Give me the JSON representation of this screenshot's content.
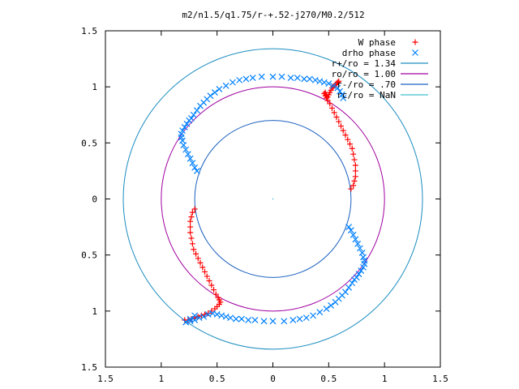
{
  "chart_data": {
    "type": "scatter",
    "title": "m2/n1.5/q1.75/r-+.52-j270/M0.2/512",
    "xlabel": "",
    "ylabel": "",
    "xlim": [
      -1.5,
      1.5
    ],
    "ylim": [
      -1.5,
      1.5
    ],
    "x_ticks": [
      "1.5",
      "1",
      "0.5",
      "0",
      "0.5",
      "1",
      "1.5"
    ],
    "y_ticks": [
      "1.5",
      "1",
      "0.5",
      "0",
      "0.5",
      "1",
      "1.5"
    ],
    "grid": false,
    "legend_position": "top-right",
    "colors": {
      "w_phase": "#ff0000",
      "drho_phase": "#0080ff",
      "r_plus": "#1a8cc0",
      "r0": "#a000a0",
      "r_minus": "#1a60c0",
      "rc": "#40c0d0"
    },
    "legend": [
      {
        "label": "W phase",
        "key": "w_phase",
        "marker": "plus"
      },
      {
        "label": "drho phase",
        "key": "drho_phase",
        "marker": "cross"
      },
      {
        "label": "r+/ro = 1.34",
        "key": "r_plus",
        "marker": "line"
      },
      {
        "label": "ro/ro = 1.00",
        "key": "r0",
        "marker": "line"
      },
      {
        "label": "r-/ro = .70",
        "key": "r_minus",
        "marker": "line"
      },
      {
        "label": "rc/ro = NaN",
        "key": "rc",
        "marker": "line"
      }
    ],
    "circles": [
      {
        "key": "r_plus",
        "radius": 1.34
      },
      {
        "key": "r0",
        "radius": 1.0
      },
      {
        "key": "r_minus",
        "radius": 0.7
      }
    ],
    "series": [
      {
        "name": "W phase",
        "key": "w_phase",
        "marker": "plus",
        "points": [
          [
            0.7,
            0.09
          ],
          [
            0.72,
            0.12
          ],
          [
            0.73,
            0.16
          ],
          [
            0.74,
            0.2
          ],
          [
            0.74,
            0.25
          ],
          [
            0.74,
            0.3
          ],
          [
            0.73,
            0.35
          ],
          [
            0.72,
            0.4
          ],
          [
            0.71,
            0.45
          ],
          [
            0.69,
            0.49
          ],
          [
            0.67,
            0.53
          ],
          [
            0.65,
            0.57
          ],
          [
            0.63,
            0.61
          ],
          [
            0.61,
            0.65
          ],
          [
            0.59,
            0.69
          ],
          [
            0.57,
            0.73
          ],
          [
            0.55,
            0.77
          ],
          [
            0.53,
            0.81
          ],
          [
            0.51,
            0.85
          ],
          [
            0.49,
            0.88
          ],
          [
            0.48,
            0.9
          ],
          [
            0.47,
            0.92
          ],
          [
            0.46,
            0.94
          ],
          [
            0.47,
            0.95
          ],
          [
            0.48,
            0.93
          ],
          [
            0.49,
            0.91
          ],
          [
            0.5,
            0.93
          ],
          [
            0.51,
            0.95
          ],
          [
            0.52,
            0.97
          ],
          [
            0.53,
            0.99
          ],
          [
            0.54,
            1.0
          ],
          [
            0.55,
            1.01
          ],
          [
            0.56,
            1.02
          ],
          [
            0.57,
            1.03
          ],
          [
            0.58,
            1.04
          ],
          [
            0.59,
            1.05
          ],
          [
            -0.7,
            -0.09
          ],
          [
            -0.72,
            -0.12
          ],
          [
            -0.73,
            -0.16
          ],
          [
            -0.74,
            -0.2
          ],
          [
            -0.74,
            -0.25
          ],
          [
            -0.74,
            -0.3
          ],
          [
            -0.73,
            -0.35
          ],
          [
            -0.72,
            -0.4
          ],
          [
            -0.71,
            -0.45
          ],
          [
            -0.69,
            -0.49
          ],
          [
            -0.67,
            -0.53
          ],
          [
            -0.65,
            -0.57
          ],
          [
            -0.63,
            -0.61
          ],
          [
            -0.61,
            -0.65
          ],
          [
            -0.59,
            -0.69
          ],
          [
            -0.57,
            -0.73
          ],
          [
            -0.55,
            -0.77
          ],
          [
            -0.53,
            -0.81
          ],
          [
            -0.51,
            -0.85
          ],
          [
            -0.49,
            -0.88
          ],
          [
            -0.48,
            -0.9
          ],
          [
            -0.47,
            -0.92
          ],
          [
            -0.48,
            -0.94
          ],
          [
            -0.5,
            -0.96
          ],
          [
            -0.52,
            -0.98
          ],
          [
            -0.55,
            -1.0
          ],
          [
            -0.58,
            -1.02
          ],
          [
            -0.61,
            -1.03
          ],
          [
            -0.64,
            -1.04
          ],
          [
            -0.67,
            -1.05
          ],
          [
            -0.7,
            -1.06
          ],
          [
            -0.73,
            -1.07
          ],
          [
            -0.76,
            -1.08
          ],
          [
            -0.79,
            -1.08
          ]
        ]
      },
      {
        "name": "drho phase",
        "key": "drho_phase",
        "marker": "cross",
        "points": [
          [
            -0.68,
            0.25
          ],
          [
            -0.7,
            0.28
          ],
          [
            -0.72,
            0.32
          ],
          [
            -0.74,
            0.36
          ],
          [
            -0.76,
            0.4
          ],
          [
            -0.78,
            0.44
          ],
          [
            -0.8,
            0.48
          ],
          [
            -0.81,
            0.52
          ],
          [
            -0.82,
            0.55
          ],
          [
            -0.82,
            0.58
          ],
          [
            -0.81,
            0.61
          ],
          [
            -0.79,
            0.64
          ],
          [
            -0.77,
            0.67
          ],
          [
            -0.75,
            0.7
          ],
          [
            -0.73,
            0.72
          ],
          [
            -0.71,
            0.75
          ],
          [
            -0.68,
            0.79
          ],
          [
            -0.65,
            0.83
          ],
          [
            -0.62,
            0.86
          ],
          [
            -0.59,
            0.89
          ],
          [
            -0.56,
            0.92
          ],
          [
            -0.52,
            0.95
          ],
          [
            -0.48,
            0.98
          ],
          [
            -0.42,
            1.01
          ],
          [
            -0.36,
            1.04
          ],
          [
            -0.3,
            1.06
          ],
          [
            -0.24,
            1.07
          ],
          [
            -0.18,
            1.08
          ],
          [
            -0.1,
            1.09
          ],
          [
            0.0,
            1.09
          ],
          [
            0.08,
            1.09
          ],
          [
            0.16,
            1.08
          ],
          [
            0.22,
            1.08
          ],
          [
            0.28,
            1.07
          ],
          [
            0.33,
            1.07
          ],
          [
            0.38,
            1.06
          ],
          [
            0.42,
            1.05
          ],
          [
            0.46,
            1.04
          ],
          [
            0.5,
            1.03
          ],
          [
            0.54,
            1.01
          ],
          [
            0.58,
            0.99
          ],
          [
            0.6,
            0.96
          ],
          [
            0.62,
            0.93
          ],
          [
            0.63,
            0.9
          ],
          [
            0.68,
            -0.25
          ],
          [
            0.7,
            -0.28
          ],
          [
            0.72,
            -0.32
          ],
          [
            0.74,
            -0.36
          ],
          [
            0.76,
            -0.4
          ],
          [
            0.78,
            -0.44
          ],
          [
            0.8,
            -0.48
          ],
          [
            0.81,
            -0.52
          ],
          [
            0.82,
            -0.55
          ],
          [
            0.82,
            -0.58
          ],
          [
            0.81,
            -0.61
          ],
          [
            0.79,
            -0.64
          ],
          [
            0.77,
            -0.67
          ],
          [
            0.75,
            -0.7
          ],
          [
            0.73,
            -0.72
          ],
          [
            0.71,
            -0.75
          ],
          [
            0.68,
            -0.79
          ],
          [
            0.65,
            -0.83
          ],
          [
            0.62,
            -0.86
          ],
          [
            0.59,
            -0.89
          ],
          [
            0.56,
            -0.92
          ],
          [
            0.52,
            -0.95
          ],
          [
            0.48,
            -0.98
          ],
          [
            0.42,
            -1.01
          ],
          [
            0.36,
            -1.04
          ],
          [
            0.3,
            -1.06
          ],
          [
            0.24,
            -1.07
          ],
          [
            0.18,
            -1.08
          ],
          [
            0.1,
            -1.09
          ],
          [
            0.0,
            -1.09
          ],
          [
            -0.08,
            -1.09
          ],
          [
            -0.16,
            -1.08
          ],
          [
            -0.22,
            -1.08
          ],
          [
            -0.28,
            -1.07
          ],
          [
            -0.33,
            -1.07
          ],
          [
            -0.38,
            -1.06
          ],
          [
            -0.42,
            -1.05
          ],
          [
            -0.46,
            -1.04
          ],
          [
            -0.5,
            -1.03
          ],
          [
            -0.54,
            -1.02
          ],
          [
            -0.58,
            -1.03
          ],
          [
            -0.62,
            -1.05
          ],
          [
            -0.66,
            -1.06
          ],
          [
            -0.7,
            -1.08
          ],
          [
            -0.74,
            -1.09
          ],
          [
            -0.78,
            -1.1
          ],
          [
            -0.74,
            -1.07
          ],
          [
            -0.7,
            -1.04
          ]
        ]
      }
    ]
  }
}
